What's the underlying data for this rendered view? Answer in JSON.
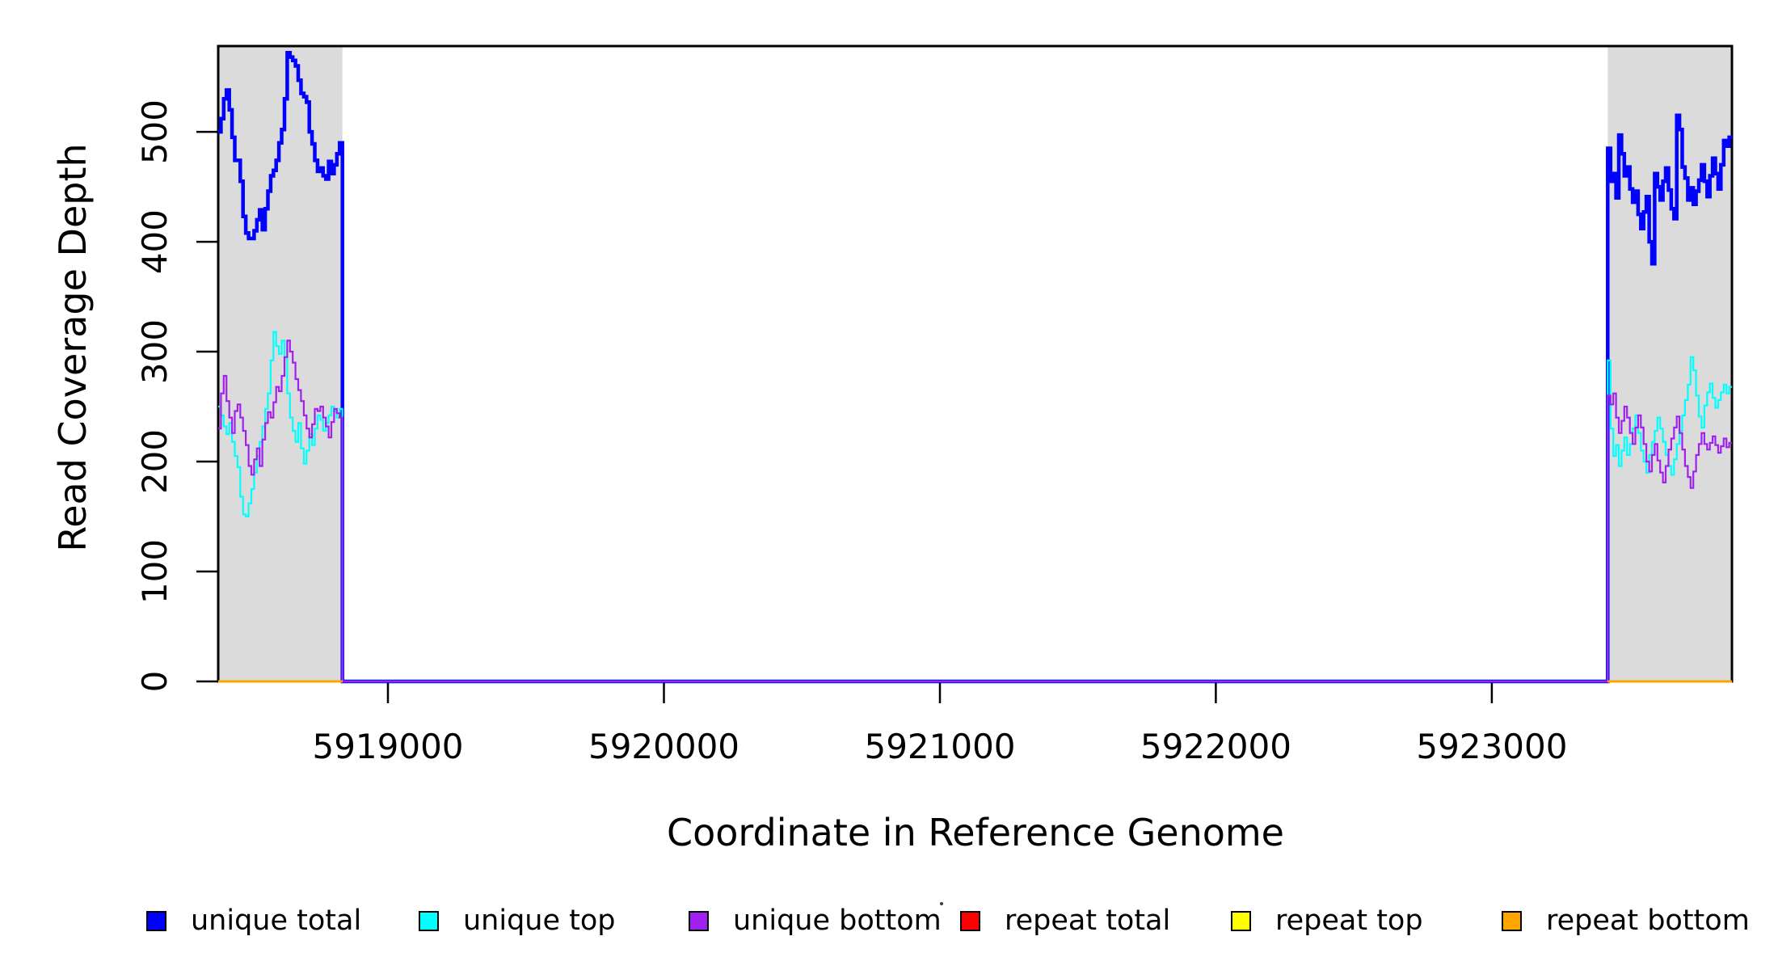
{
  "figure": {
    "background": "#FFFFFF"
  },
  "chart_data": {
    "type": "line",
    "title": "",
    "xlabel": "Coordinate in Reference Genome",
    "ylabel": "Read Coverage Depth",
    "xlim": [
      5918385,
      5923870
    ],
    "ylim": [
      0,
      578
    ],
    "x_ticks": [
      5919000,
      5920000,
      5921000,
      5922000,
      5923000
    ],
    "y_ticks": [
      0,
      100,
      200,
      300,
      400,
      500
    ],
    "grid": false,
    "axis_color": "#000000",
    "band_color": "#DBDBDB",
    "shaded_regions": [
      {
        "name": "left-repeat-region",
        "from": 5918385,
        "to": 5918835
      },
      {
        "name": "right-repeat-region",
        "from": 5923420,
        "to": 5923870
      }
    ],
    "legend": {
      "position": "bottom",
      "entries": [
        {
          "label": "unique total",
          "color": "#0000FF"
        },
        {
          "label": "unique top",
          "color": "#00FFFF"
        },
        {
          "label": "unique bottom",
          "color": "#A020F0"
        },
        {
          "label": "repeat total",
          "color": "#FF0000"
        },
        {
          "label": "repeat top",
          "color": "#FFFF00"
        },
        {
          "label": "repeat bottom",
          "color": "#FFA500"
        }
      ]
    },
    "series": [
      {
        "name": "unique total",
        "color": "#0000FF",
        "width": 4.5,
        "paths": [
          {
            "segments": [
              {
                "x0": 5918385,
                "dx": 10,
                "values": [
                  500,
                  512,
                  530,
                  538,
                  520,
                  495,
                  474,
                  474,
                  455,
                  423,
                  408,
                  403,
                  403,
                  410,
                  420,
                  429,
                  411,
                  430,
                  446,
                  460,
                  465,
                  474,
                  490,
                  502,
                  530,
                  572,
                  568,
                  565,
                  560,
                  547,
                  535,
                  532,
                  527,
                  500,
                  489,
                  474,
                  464,
                  467,
                  460,
                  457,
                  473,
                  462,
                  470,
                  480,
                  490
                ]
              },
              {
                "x0": 5918835,
                "dx": 4585,
                "values": [
                  0
                ]
              },
              {
                "x0": 5923420,
                "dx": 10,
                "values": [
                  485,
                  455,
                  462,
                  440,
                  497,
                  480,
                  460,
                  468,
                  448,
                  436,
                  446,
                  425,
                  412,
                  427,
                  441,
                  400,
                  380,
                  462,
                  450,
                  438,
                  455,
                  467,
                  447,
                  430,
                  421,
                  515,
                  502,
                  468,
                  458,
                  438,
                  449,
                  434,
                  446,
                  456,
                  470,
                  455,
                  441,
                  460,
                  476,
                  462,
                  448,
                  470,
                  492,
                  487,
                  495
                ]
              }
            ],
            "end_x": 5923870
          }
        ]
      },
      {
        "name": "unique top",
        "color": "#00FFFF",
        "width": 2.2,
        "paths": [
          {
            "segments": [
              {
                "x0": 5918385,
                "dx": 10,
                "values": [
                  250,
                  242,
                  232,
                  225,
                  235,
                  218,
                  205,
                  195,
                  168,
                  152,
                  150,
                  162,
                  175,
                  190,
                  205,
                  218,
                  232,
                  248,
                  262,
                  292,
                  318,
                  305,
                  298,
                  310,
                  295,
                  262,
                  240,
                  228,
                  218,
                  235,
                  212,
                  198,
                  210,
                  225,
                  215,
                  230,
                  242,
                  238,
                  228,
                  235,
                  242,
                  250,
                  246,
                  240,
                  248
                ]
              },
              {
                "x0": 5918835,
                "dx": 4585,
                "values": [
                  0
                ]
              },
              {
                "x0": 5923420,
                "dx": 10,
                "values": [
                  292,
                  230,
                  205,
                  215,
                  196,
                  210,
                  222,
                  206,
                  216,
                  230,
                  242,
                  226,
                  210,
                  200,
                  190,
                  206,
                  218,
                  228,
                  240,
                  230,
                  218,
                  206,
                  196,
                  188,
                  202,
                  216,
                  228,
                  242,
                  256,
                  270,
                  295,
                  283,
                  260,
                  241,
                  231,
                  251,
                  263,
                  271,
                  258,
                  249,
                  256,
                  263,
                  270,
                  262,
                  268
                ]
              }
            ],
            "end_x": 5923870
          }
        ]
      },
      {
        "name": "unique bottom",
        "color": "#A020F0",
        "width": 2.2,
        "paths": [
          {
            "segments": [
              {
                "x0": 5918385,
                "dx": 10,
                "values": [
                  230,
                  262,
                  278,
                  255,
                  240,
                  226,
                  246,
                  252,
                  240,
                  228,
                  215,
                  196,
                  188,
                  202,
                  212,
                  196,
                  220,
                  235,
                  245,
                  240,
                  254,
                  268,
                  264,
                  278,
                  295,
                  310,
                  300,
                  290,
                  275,
                  265,
                  255,
                  242,
                  230,
                  222,
                  234,
                  248,
                  246,
                  250,
                  240,
                  232,
                  222,
                  236,
                  248,
                  244,
                  240
                ]
              },
              {
                "x0": 5918835,
                "dx": 4585,
                "values": [
                  0
                ]
              },
              {
                "x0": 5923420,
                "dx": 10,
                "values": [
                  260,
                  252,
                  262,
                  240,
                  226,
                  237,
                  250,
                  240,
                  226,
                  216,
                  231,
                  242,
                  231,
                  216,
                  200,
                  191,
                  206,
                  216,
                  201,
                  190,
                  181,
                  196,
                  211,
                  221,
                  231,
                  241,
                  226,
                  211,
                  196,
                  186,
                  176,
                  191,
                  206,
                  216,
                  226,
                  216,
                  211,
                  217,
                  223,
                  215,
                  208,
                  214,
                  221,
                  213,
                  217
                ]
              }
            ],
            "end_x": 5923870
          }
        ]
      },
      {
        "name": "repeat total",
        "color": "#FF0000",
        "width": 3,
        "paths": [
          {
            "segments": [
              {
                "x0": 5918385,
                "dx": 450,
                "values": [
                  0
                ]
              }
            ],
            "end_x": 5918835
          },
          {
            "segments": [
              {
                "x0": 5923420,
                "dx": 450,
                "values": [
                  0
                ]
              }
            ],
            "end_x": 5923870
          }
        ]
      },
      {
        "name": "repeat top",
        "color": "#FFFF00",
        "width": 2.8,
        "paths": [
          {
            "segments": [
              {
                "x0": 5918385,
                "dx": 450,
                "values": [
                  0
                ]
              }
            ],
            "end_x": 5918835
          },
          {
            "segments": [
              {
                "x0": 5923420,
                "dx": 450,
                "values": [
                  0
                ]
              }
            ],
            "end_x": 5923870
          }
        ]
      },
      {
        "name": "repeat bottom",
        "color": "#FFA500",
        "width": 3,
        "paths": [
          {
            "segments": [
              {
                "x0": 5918385,
                "dx": 450,
                "values": [
                  0
                ]
              }
            ],
            "end_x": 5918835
          },
          {
            "segments": [
              {
                "x0": 5923420,
                "dx": 450,
                "values": [
                  0
                ]
              }
            ],
            "end_x": 5923870
          }
        ]
      }
    ]
  }
}
